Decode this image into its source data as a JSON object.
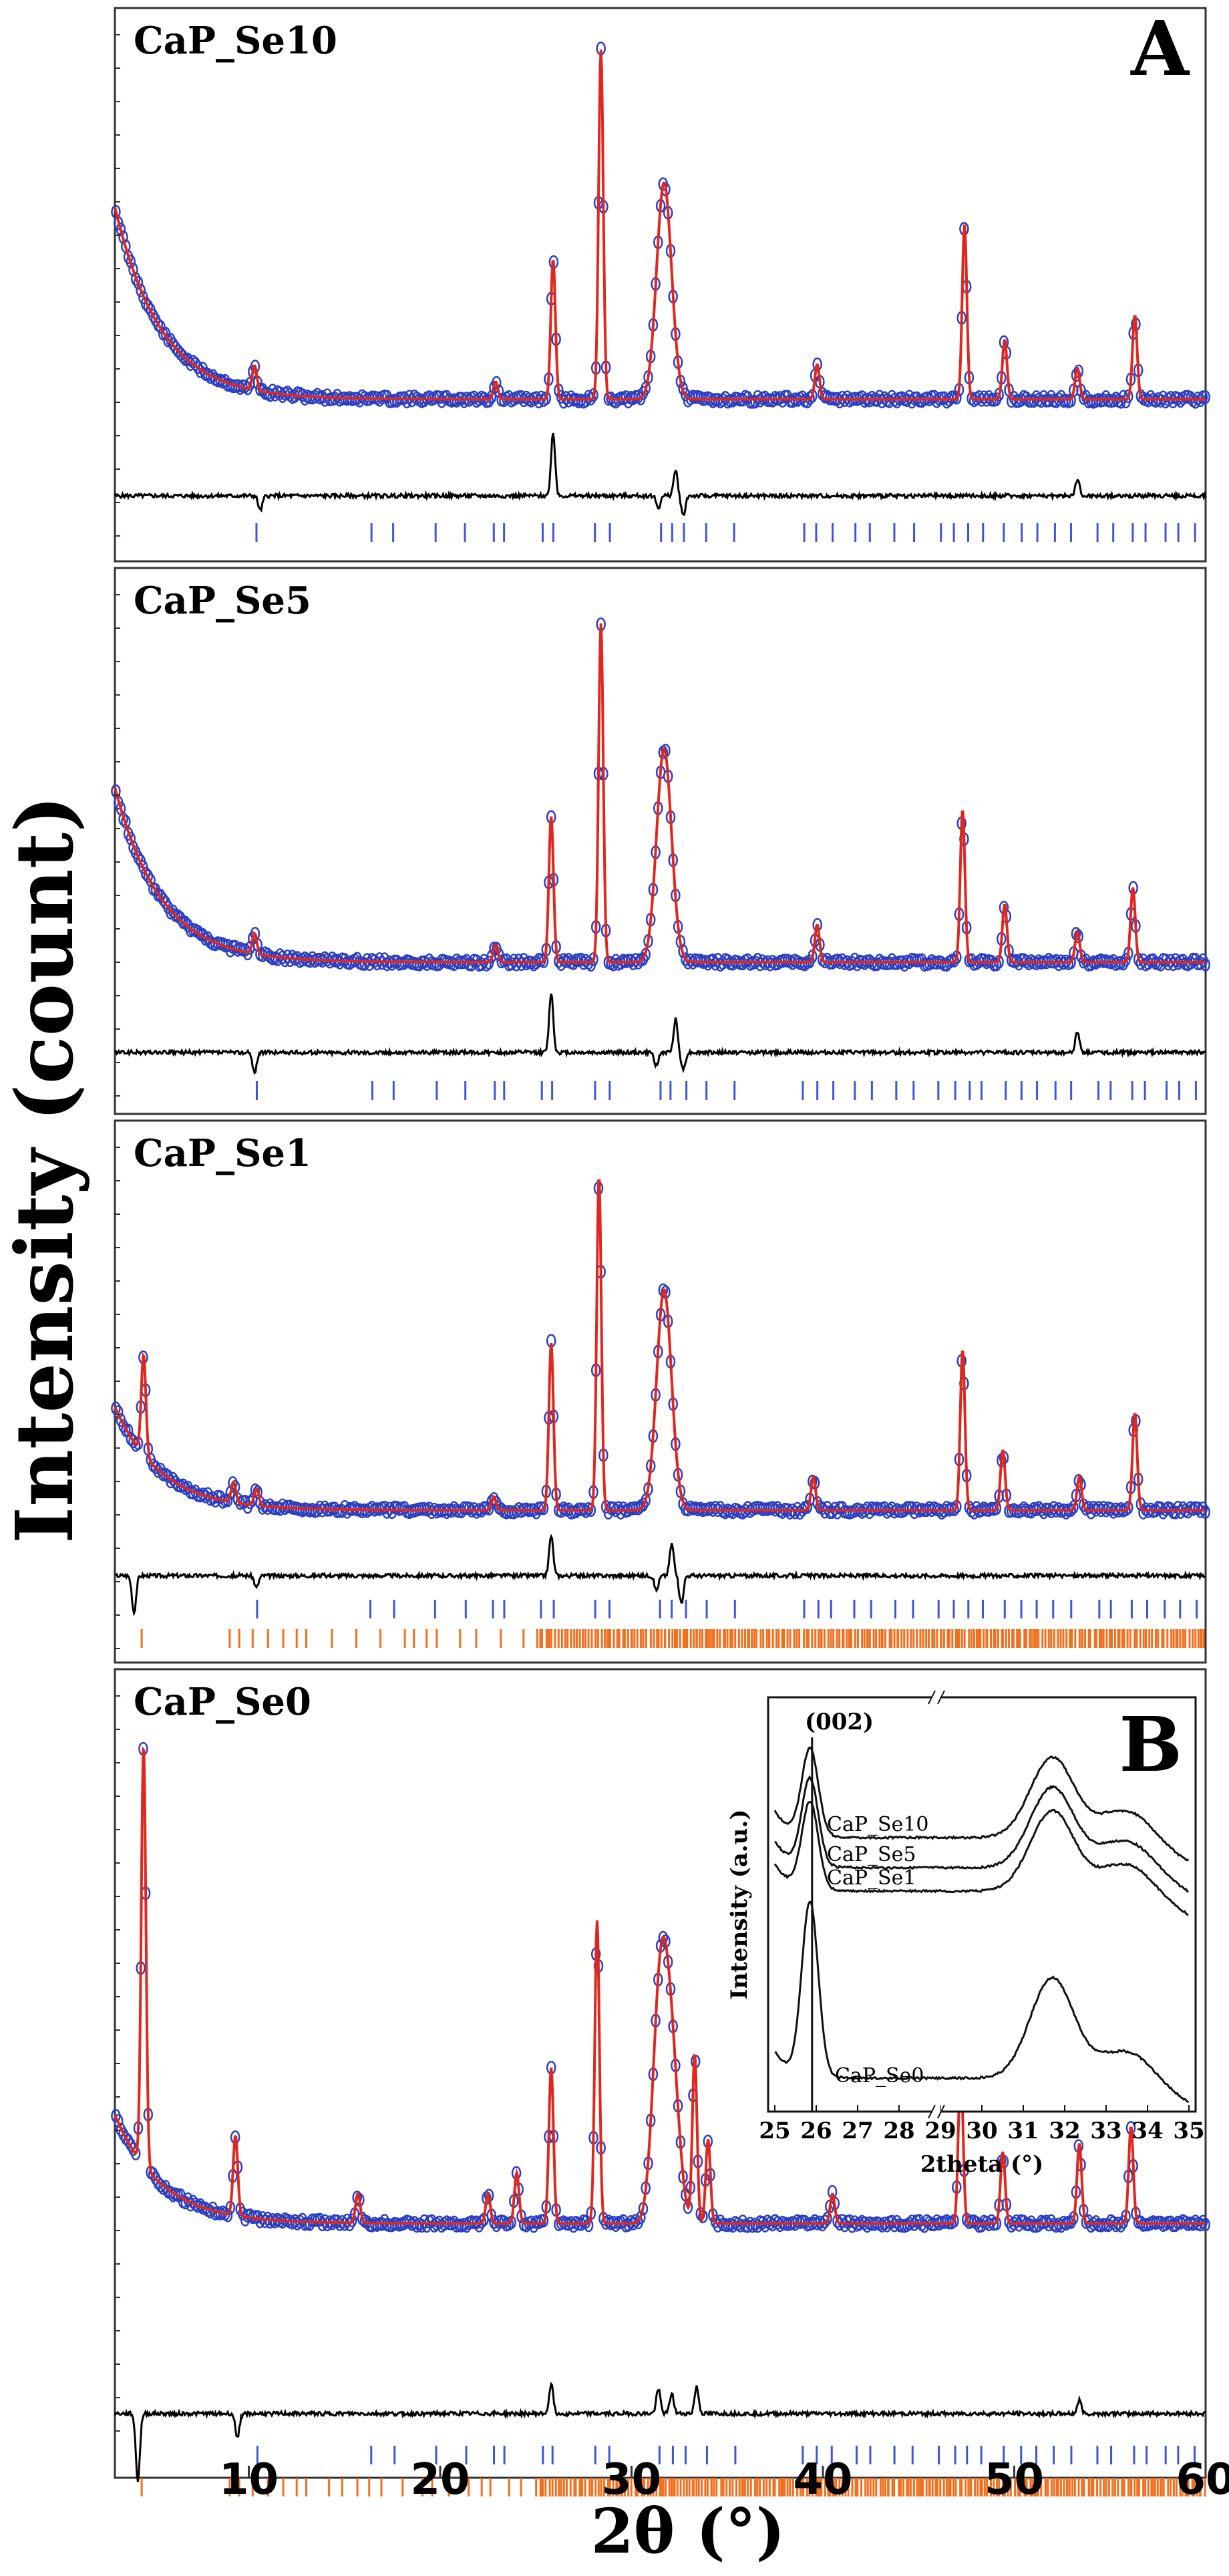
{
  "chart_data": {
    "type": "line",
    "figure_kind": "Rietveld refinement of X-ray powder diffraction patterns",
    "ylabel": "Intensity (count)",
    "xlabel": "2θ (°)",
    "xlim": [
      3,
      60
    ],
    "x_ticks": [
      10,
      20,
      30,
      40,
      50,
      60
    ],
    "legend_colors": {
      "observed": "#2a3fc2",
      "calculated": "#e0271d",
      "difference": "#000000",
      "reflections_phase1": "#3f55d6",
      "reflections_phase2": "#f07020"
    },
    "panels": [
      {
        "name": "CaP_Se10",
        "letter": "A",
        "second_phase": false,
        "peaks": [
          {
            "two_theta": 3.2,
            "intensity": 0.64
          },
          {
            "two_theta": 10.3,
            "intensity": 0.07
          },
          {
            "two_theta": 22.9,
            "intensity": 0.05
          },
          {
            "two_theta": 25.9,
            "intensity": 0.4
          },
          {
            "two_theta": 28.4,
            "intensity": 1.0
          },
          {
            "two_theta": 31.7,
            "intensity": 0.62
          },
          {
            "two_theta": 39.7,
            "intensity": 0.1
          },
          {
            "two_theta": 47.4,
            "intensity": 0.5
          },
          {
            "two_theta": 49.5,
            "intensity": 0.17
          },
          {
            "two_theta": 53.3,
            "intensity": 0.09
          },
          {
            "two_theta": 56.3,
            "intensity": 0.24
          }
        ]
      },
      {
        "name": "CaP_Se5",
        "letter": "",
        "second_phase": false,
        "peaks": [
          {
            "two_theta": 3.2,
            "intensity": 0.6
          },
          {
            "two_theta": 10.3,
            "intensity": 0.06
          },
          {
            "two_theta": 22.9,
            "intensity": 0.05
          },
          {
            "two_theta": 25.8,
            "intensity": 0.43
          },
          {
            "two_theta": 28.4,
            "intensity": 1.0
          },
          {
            "two_theta": 31.7,
            "intensity": 0.63
          },
          {
            "two_theta": 39.7,
            "intensity": 0.11
          },
          {
            "two_theta": 47.3,
            "intensity": 0.45
          },
          {
            "two_theta": 49.5,
            "intensity": 0.17
          },
          {
            "two_theta": 53.3,
            "intensity": 0.09
          },
          {
            "two_theta": 56.2,
            "intensity": 0.22
          }
        ]
      },
      {
        "name": "CaP_Se1",
        "letter": "",
        "second_phase": true,
        "peaks": [
          {
            "two_theta": 3.2,
            "intensity": 0.36
          },
          {
            "two_theta": 4.5,
            "intensity": 0.3
          },
          {
            "two_theta": 9.2,
            "intensity": 0.06
          },
          {
            "two_theta": 10.4,
            "intensity": 0.05
          },
          {
            "two_theta": 22.8,
            "intensity": 0.04
          },
          {
            "two_theta": 25.8,
            "intensity": 0.5
          },
          {
            "two_theta": 28.3,
            "intensity": 1.0
          },
          {
            "two_theta": 31.7,
            "intensity": 0.66
          },
          {
            "two_theta": 39.5,
            "intensity": 0.1
          },
          {
            "two_theta": 47.3,
            "intensity": 0.48
          },
          {
            "two_theta": 49.4,
            "intensity": 0.18
          },
          {
            "two_theta": 53.4,
            "intensity": 0.1
          },
          {
            "two_theta": 56.3,
            "intensity": 0.29
          }
        ]
      },
      {
        "name": "CaP_Se0",
        "letter": "",
        "second_phase": true,
        "peaks": [
          {
            "two_theta": 3.2,
            "intensity": 0.3
          },
          {
            "two_theta": 4.5,
            "intensity": 1.0
          },
          {
            "two_theta": 9.3,
            "intensity": 0.19
          },
          {
            "two_theta": 15.7,
            "intensity": 0.07
          },
          {
            "two_theta": 22.5,
            "intensity": 0.07
          },
          {
            "two_theta": 24.0,
            "intensity": 0.12
          },
          {
            "two_theta": 25.8,
            "intensity": 0.37
          },
          {
            "two_theta": 28.2,
            "intensity": 0.72
          },
          {
            "two_theta": 31.5,
            "intensity": 0.54
          },
          {
            "two_theta": 32.1,
            "intensity": 0.35
          },
          {
            "two_theta": 33.3,
            "intensity": 0.4
          },
          {
            "two_theta": 34.0,
            "intensity": 0.2
          },
          {
            "two_theta": 40.5,
            "intensity": 0.07
          },
          {
            "two_theta": 47.2,
            "intensity": 0.38
          },
          {
            "two_theta": 49.4,
            "intensity": 0.17
          },
          {
            "two_theta": 53.4,
            "intensity": 0.19
          },
          {
            "two_theta": 56.1,
            "intensity": 0.23
          }
        ]
      }
    ],
    "inset": {
      "letter": "B",
      "ylabel": "Intensity (a.u.)",
      "xlabel": "2theta (°)",
      "x_ticks": [
        "25",
        "26",
        "27",
        "28",
        "29",
        "30",
        "31",
        "32",
        "33",
        "34",
        "35"
      ],
      "annotation": "(002)",
      "reference_line_two_theta": 25.9,
      "series": [
        {
          "name": "CaP_Se10"
        },
        {
          "name": "CaP_Se5"
        },
        {
          "name": "CaP_Se1"
        },
        {
          "name": "CaP_Se0"
        }
      ]
    }
  }
}
